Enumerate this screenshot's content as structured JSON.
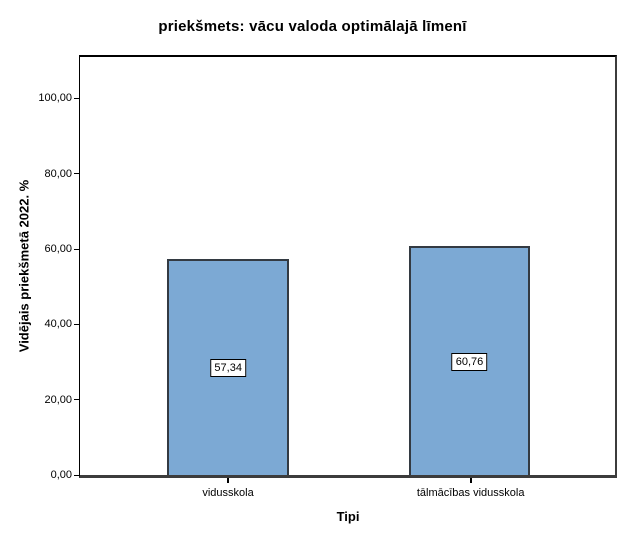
{
  "chart_data": {
    "type": "bar",
    "title": "priekšmets: vācu valoda optimālajā līmenī",
    "xlabel": "Tipi",
    "ylabel": "Vidējais priekšmetā 2022. %",
    "categories": [
      "vidusskola",
      "tālmācības vidusskola"
    ],
    "values": [
      57.34,
      60.76
    ],
    "value_labels": [
      "57,34",
      "60,76"
    ],
    "ytick_values": [
      0,
      20,
      40,
      60,
      80,
      100
    ],
    "ytick_labels": [
      "0,00",
      "20,00",
      "40,00",
      "60,00",
      "80,00",
      "100,00"
    ],
    "ylim": [
      0,
      111
    ],
    "grid": false,
    "legend_position": "none",
    "bar_color": "#7CA9D4",
    "bar_border_color": "#333A42",
    "axis_color": "#3c3c3c",
    "background_color": "#ffffff"
  }
}
